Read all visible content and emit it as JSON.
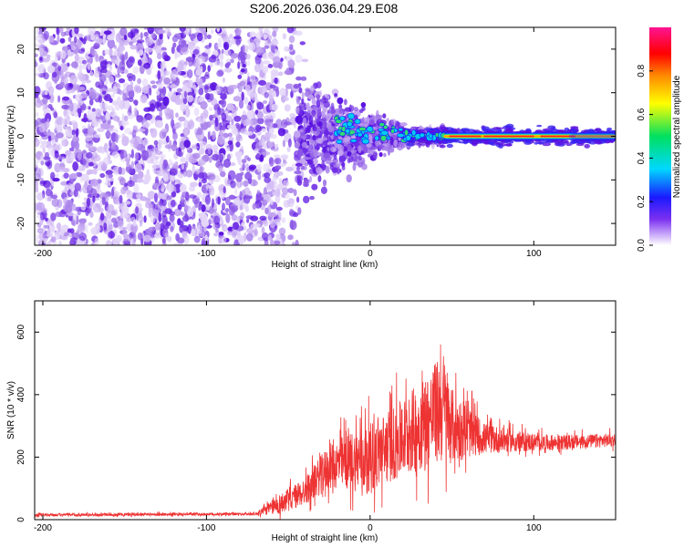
{
  "title": "S206.2026.036.04.29.E08",
  "colors": {
    "spectrogram_dot": "#5a12e0",
    "spectrogram_light": "#d9c6f7",
    "snr_line": "#ee3333",
    "axes": "#000000"
  },
  "chart_data": [
    {
      "type": "heatmap",
      "name": "spectrogram",
      "xlabel": "Height of straight line (km)",
      "ylabel": "Frequency (Hz)",
      "xlim": [
        -205,
        150
      ],
      "ylim": [
        -25,
        25
      ],
      "xticks": [
        -200,
        -100,
        0,
        100
      ],
      "yticks": [
        -20,
        -10,
        0,
        10,
        20
      ],
      "description_values": {
        "noise_region_x": [
          -205,
          -45
        ],
        "transition_x": [
          -45,
          40
        ],
        "carrier_frequency_hz": 0,
        "carrier_region_x": [
          40,
          150
        ]
      },
      "colorbar": {
        "label": "Normalized spectral amplitude",
        "range": [
          0.0,
          1.0
        ],
        "ticks": [
          0.0,
          0.2,
          0.4,
          0.6,
          0.8
        ],
        "tick_labels": [
          "0.0",
          "0.2",
          "0.4",
          "0.6",
          "0.8"
        ],
        "colormap": [
          "#ffffff",
          "#5a12e0",
          "#1a1aff",
          "#00d8ff",
          "#00e060",
          "#ffff00",
          "#ff8800",
          "#ff0000",
          "#ff1493"
        ]
      }
    },
    {
      "type": "line",
      "name": "snr",
      "xlabel": "Height of straight line (km)",
      "ylabel": "SNR (10 * v/v)",
      "xlim": [
        -205,
        150
      ],
      "ylim": [
        0,
        700
      ],
      "xticks": [
        -200,
        -100,
        0,
        100
      ],
      "yticks": [
        0,
        200,
        400,
        600
      ],
      "envelope": {
        "x": [
          -205,
          -70,
          -55,
          -40,
          -25,
          -10,
          0,
          10,
          20,
          30,
          40,
          45,
          50,
          60,
          70,
          90,
          110,
          130,
          150
        ],
        "mean": [
          15,
          18,
          50,
          90,
          170,
          190,
          200,
          230,
          260,
          300,
          340,
          360,
          300,
          280,
          260,
          250,
          245,
          250,
          255
        ],
        "spread": [
          8,
          8,
          60,
          80,
          130,
          180,
          200,
          210,
          230,
          260,
          300,
          330,
          220,
          150,
          90,
          60,
          45,
          40,
          40
        ]
      }
    }
  ]
}
